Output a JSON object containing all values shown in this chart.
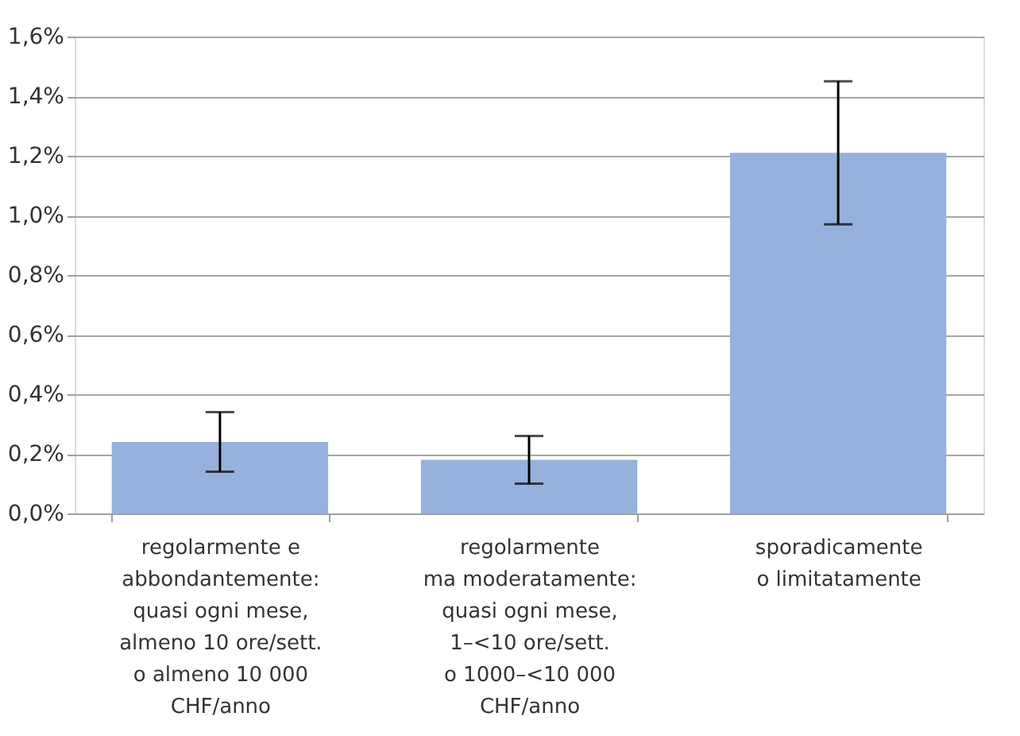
{
  "chart_data": {
    "type": "bar",
    "categories": [
      "regolarmente e\nabbondantemente:\nquasi ogni mese,\nalmeno 10 ore/sett.\no almeno 10 000\nCHF/anno",
      "regolarmente\nma moderatamente:\nquasi ogni mese,\n1–<10 ore/sett.\no 1000–<10 000\nCHF/anno",
      "sporadicamente\no limitatamente"
    ],
    "values": [
      0.24,
      0.18,
      1.21
    ],
    "errors": [
      [
        0.14,
        0.34
      ],
      [
        0.1,
        0.26
      ],
      [
        0.97,
        1.45
      ]
    ],
    "color": "#95b1dc",
    "ylim": [
      0,
      1.6
    ],
    "yticks": [
      {
        "value": 0,
        "label": "0,0%"
      },
      {
        "value": 0.2,
        "label": "0,2%"
      },
      {
        "value": 0.4,
        "label": "0,4%"
      },
      {
        "value": 0.6,
        "label": "0,6%"
      },
      {
        "value": 0.8,
        "label": "0,8%"
      },
      {
        "value": 1.0,
        "label": "1,0%"
      },
      {
        "value": 1.2,
        "label": "1,2%"
      },
      {
        "value": 1.4,
        "label": "1,4%"
      },
      {
        "value": 1.6,
        "label": "1,6%"
      }
    ],
    "grid": "y"
  }
}
